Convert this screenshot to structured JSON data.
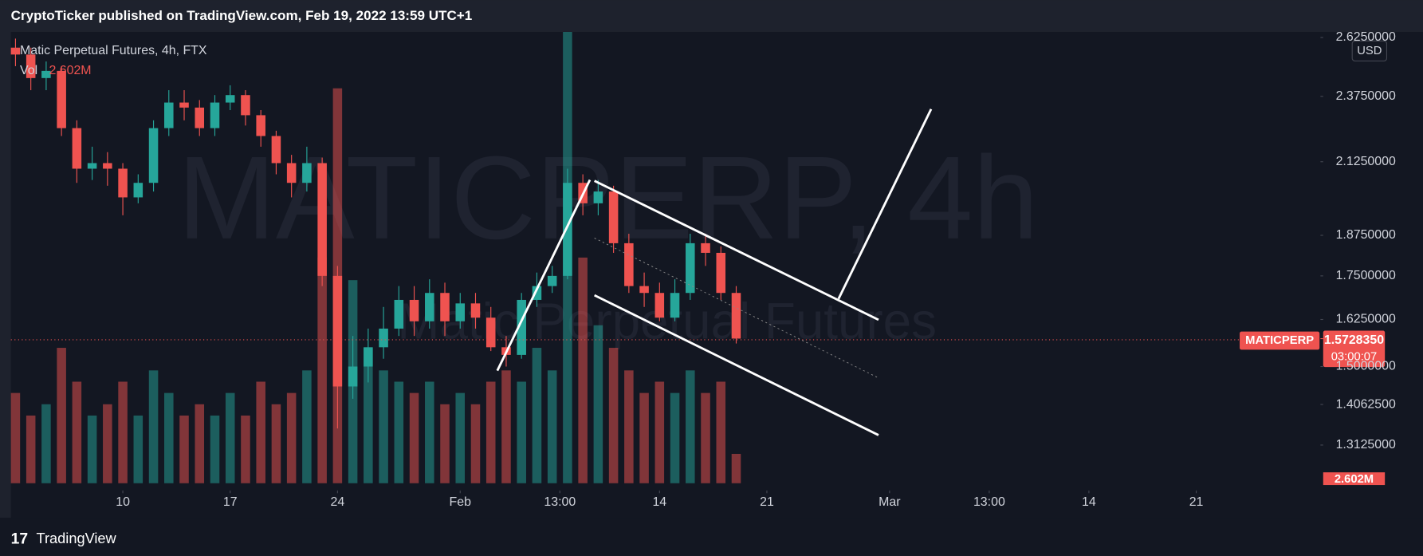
{
  "header": {
    "title": "CryptoTicker published on TradingView.com, Feb 19, 2022 13:59 UTC+1"
  },
  "footer": {
    "brand": "TradingView"
  },
  "chart_data": {
    "type": "candlestick",
    "title": "Matic Perpetual Futures, 4h, FTX",
    "watermark": "MATICPERP, 4h",
    "watermark_subtitle": "Matic Perpetual Futures",
    "currency": "USD",
    "symbol": "MATICPERP",
    "volume_title": "Vol",
    "volume_label": "2.602M",
    "countdown": "03:00:07",
    "last_price": {
      "value": 1.572835,
      "label": "1.5728350"
    },
    "log_scale": true,
    "grid": false,
    "up_color": "#26a69a",
    "down_color": "#ef5350",
    "xlim": [
      -7.3,
      78.1
    ],
    "xticks": [
      {
        "value": 0,
        "label": "10"
      },
      {
        "value": 7,
        "label": "17"
      },
      {
        "value": 14,
        "label": "24"
      },
      {
        "value": 22,
        "label": "Feb"
      },
      {
        "value": 28.5,
        "label": "13:00"
      },
      {
        "value": 35,
        "label": "14"
      },
      {
        "value": 42,
        "label": "21"
      },
      {
        "value": 50,
        "label": "Mar"
      },
      {
        "value": 56.5,
        "label": "13:00"
      },
      {
        "value": 63,
        "label": "14"
      },
      {
        "value": 70,
        "label": "21"
      }
    ],
    "ylim": [
      1.23,
      2.65
    ],
    "yticks": [
      {
        "value": 2.625,
        "label": "2.6250000"
      },
      {
        "value": 2.375,
        "label": "2.3750000"
      },
      {
        "value": 2.125,
        "label": "2.1250000"
      },
      {
        "value": 1.875,
        "label": "1.8750000"
      },
      {
        "value": 1.75,
        "label": "1.7500000"
      },
      {
        "value": 1.625,
        "label": "1.6250000"
      },
      {
        "value": 1.5,
        "label": "1.5000000"
      },
      {
        "value": 1.40625,
        "label": "1.4062500"
      },
      {
        "value": 1.3125,
        "label": "1.3125000"
      }
    ],
    "volume_lim": [
      0,
      40
    ],
    "x": [
      -7,
      -6,
      -5,
      -4,
      -3,
      -2,
      -1,
      0,
      1,
      2,
      3,
      4,
      5,
      6,
      7,
      8,
      9,
      10,
      11,
      12,
      13,
      14,
      15,
      16,
      17,
      18,
      19,
      20,
      21,
      22,
      23,
      24,
      25,
      26,
      27,
      28,
      29,
      30,
      31,
      32,
      33,
      34,
      35,
      36,
      37,
      38,
      39,
      40
    ],
    "open": [
      2.58,
      2.55,
      2.45,
      2.48,
      2.25,
      2.1,
      2.12,
      2.1,
      2.0,
      2.05,
      2.25,
      2.35,
      2.33,
      2.25,
      2.35,
      2.38,
      2.3,
      2.22,
      2.12,
      2.05,
      2.12,
      1.75,
      1.45,
      1.5,
      1.55,
      1.6,
      1.68,
      1.62,
      1.7,
      1.62,
      1.67,
      1.63,
      1.55,
      1.53,
      1.68,
      1.72,
      1.75,
      2.05,
      1.98,
      2.02,
      1.85,
      1.72,
      1.7,
      1.63,
      1.7,
      1.85,
      1.82,
      1.7
    ],
    "high": [
      2.62,
      2.58,
      2.52,
      2.5,
      2.28,
      2.18,
      2.16,
      2.12,
      2.08,
      2.28,
      2.4,
      2.4,
      2.36,
      2.38,
      2.42,
      2.4,
      2.32,
      2.24,
      2.15,
      2.18,
      2.14,
      1.78,
      1.58,
      1.6,
      1.66,
      1.72,
      1.72,
      1.74,
      1.73,
      1.7,
      1.7,
      1.66,
      1.58,
      1.7,
      1.76,
      1.78,
      2.1,
      2.08,
      2.06,
      2.04,
      1.88,
      1.76,
      1.73,
      1.74,
      1.88,
      1.88,
      1.84,
      1.72
    ],
    "low": [
      2.5,
      2.4,
      2.4,
      2.22,
      2.05,
      2.06,
      2.04,
      1.94,
      1.98,
      2.02,
      2.22,
      2.28,
      2.22,
      2.22,
      2.32,
      2.26,
      2.18,
      2.08,
      2.0,
      2.02,
      1.72,
      1.35,
      1.42,
      1.46,
      1.52,
      1.58,
      1.58,
      1.6,
      1.58,
      1.6,
      1.6,
      1.54,
      1.5,
      1.52,
      1.66,
      1.7,
      1.74,
      1.94,
      1.94,
      1.82,
      1.7,
      1.66,
      1.62,
      1.62,
      1.68,
      1.78,
      1.68,
      1.56
    ],
    "close": [
      2.55,
      2.45,
      2.48,
      2.25,
      2.1,
      2.12,
      2.1,
      2.0,
      2.05,
      2.25,
      2.35,
      2.33,
      2.25,
      2.35,
      2.38,
      2.3,
      2.22,
      2.12,
      2.05,
      2.12,
      1.75,
      1.45,
      1.5,
      1.55,
      1.6,
      1.68,
      1.62,
      1.7,
      1.62,
      1.67,
      1.63,
      1.55,
      1.53,
      1.68,
      1.72,
      1.75,
      2.05,
      1.98,
      2.02,
      1.85,
      1.72,
      1.7,
      1.63,
      1.7,
      1.85,
      1.82,
      1.7,
      1.573
    ],
    "volume": [
      8,
      6,
      7,
      12,
      9,
      6,
      7,
      9,
      6,
      10,
      8,
      6,
      7,
      6,
      8,
      6,
      9,
      7,
      8,
      10,
      20,
      35,
      18,
      12,
      10,
      9,
      8,
      9,
      7,
      8,
      7,
      9,
      10,
      9,
      12,
      10,
      40,
      20,
      14,
      12,
      10,
      8,
      9,
      8,
      10,
      8,
      9,
      2.602
    ]
  }
}
